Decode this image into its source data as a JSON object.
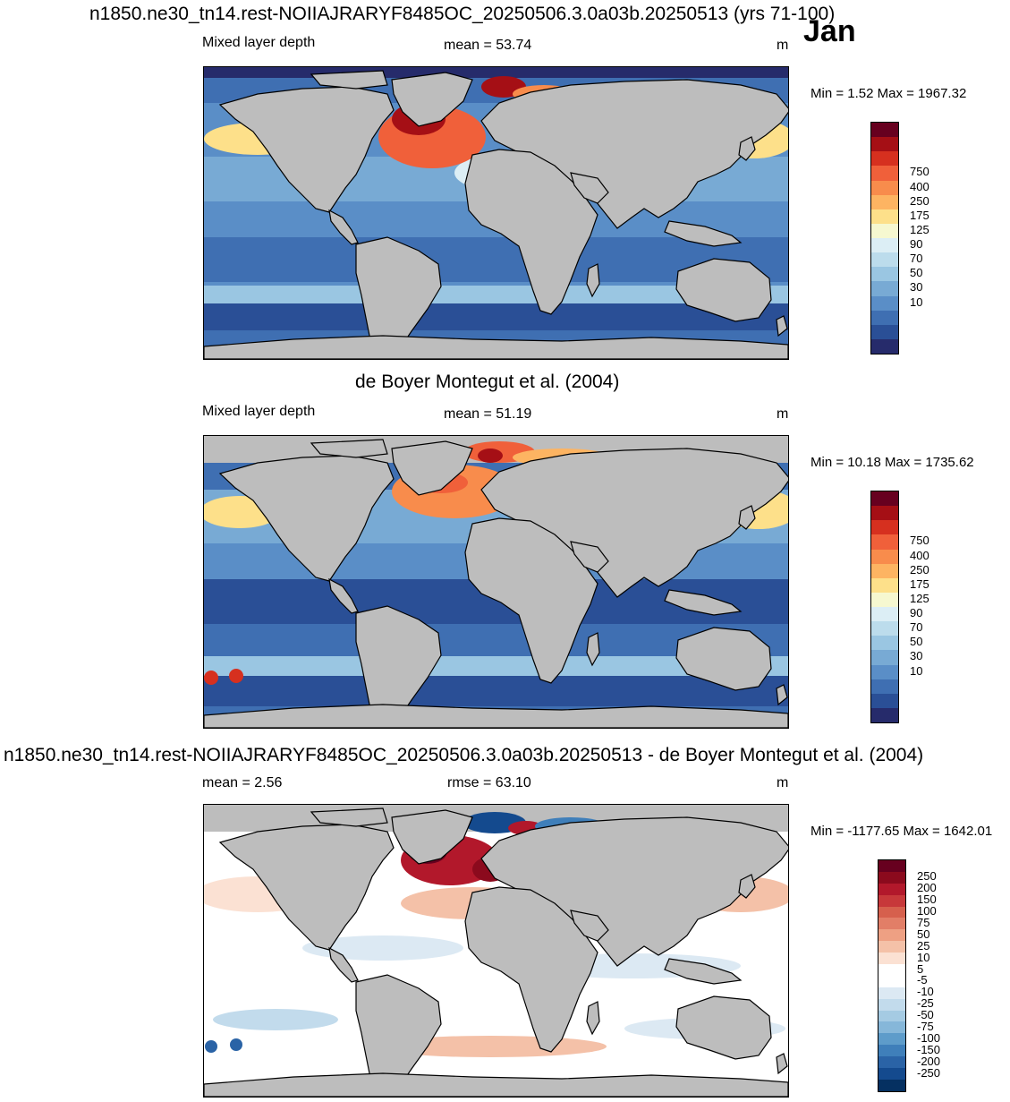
{
  "header": {
    "title": "n1850.ne30_tn14.rest-NOIIAJRARYF8485OC_20250506.3.0a03b.20250513 (yrs 71-100)",
    "month": "Jan"
  },
  "panels": [
    {
      "id": "model",
      "variable": "Mixed layer depth",
      "stat1": "mean =  53.74",
      "stat2": "",
      "units": "m",
      "minmax": "Min =    1.52 Max = 1967.32",
      "colorbar_labels": [
        "750",
        "400",
        "250",
        "175",
        "125",
        "90",
        "70",
        "50",
        "30",
        "10"
      ],
      "colors": [
        "#67001f",
        "#a50f15",
        "#d6301f",
        "#f0603a",
        "#f88c4c",
        "#fdb462",
        "#fde08a",
        "#f6f8d0",
        "#dceef5",
        "#bcdcec",
        "#9ac6e2",
        "#78aad4",
        "#5a8ec7",
        "#3f6fb2",
        "#2a4f96",
        "#262b6b"
      ]
    },
    {
      "id": "obs",
      "title": "de Boyer Montegut et al. (2004)",
      "variable": "Mixed layer depth",
      "stat1": "mean =  51.19",
      "stat2": "",
      "units": "m",
      "minmax": "Min =  10.18 Max = 1735.62",
      "colorbar_labels": [
        "750",
        "400",
        "250",
        "175",
        "125",
        "90",
        "70",
        "50",
        "30",
        "10"
      ],
      "colors": [
        "#67001f",
        "#a50f15",
        "#d6301f",
        "#f0603a",
        "#f88c4c",
        "#fdb462",
        "#fde08a",
        "#f6f8d0",
        "#dceef5",
        "#bcdcec",
        "#9ac6e2",
        "#78aad4",
        "#5a8ec7",
        "#3f6fb2",
        "#2a4f96",
        "#262b6b"
      ]
    },
    {
      "id": "diff",
      "title": "n1850.ne30_tn14.rest-NOIIAJRARYF8485OC_20250506.3.0a03b.20250513 - de Boyer Montegut et al. (2004)",
      "stat1": "mean =   2.56",
      "stat2": "rmse =  63.10",
      "units": "m",
      "minmax": "Min = -1177.65 Max = 1642.01",
      "colorbar_labels": [
        "250",
        "200",
        "150",
        "100",
        "75",
        "50",
        "25",
        "10",
        "5",
        "-5",
        "-10",
        "-25",
        "-50",
        "-75",
        "-100",
        "-150",
        "-200",
        "-250"
      ],
      "colors": [
        "#67001f",
        "#8b0a1d",
        "#b2182b",
        "#c7383a",
        "#d6604d",
        "#e27e67",
        "#eea083",
        "#f4c1a8",
        "#fbe1d3",
        "#ffffff",
        "#ffffff",
        "#dce9f3",
        "#c2dbec",
        "#a5cbe3",
        "#86b7d9",
        "#5e9cca",
        "#3f7fba",
        "#2a63a6",
        "#144a8e",
        "#053061"
      ]
    }
  ]
}
